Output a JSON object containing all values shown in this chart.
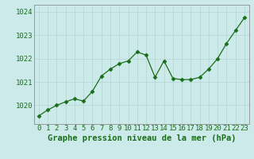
{
  "x": [
    0,
    1,
    2,
    3,
    4,
    5,
    6,
    7,
    8,
    9,
    10,
    11,
    12,
    13,
    14,
    15,
    16,
    17,
    18,
    19,
    20,
    21,
    22,
    23
  ],
  "y": [
    1019.55,
    1019.8,
    1020.0,
    1020.15,
    1020.28,
    1020.18,
    1020.6,
    1021.25,
    1021.55,
    1021.78,
    1021.9,
    1022.28,
    1022.15,
    1021.2,
    1021.9,
    1021.15,
    1021.1,
    1021.1,
    1021.2,
    1021.55,
    1022.0,
    1022.65,
    1023.2,
    1023.75
  ],
  "line_color": "#1a6e1a",
  "marker": "D",
  "marker_size": 2.5,
  "bg_color": "#cceaea",
  "grid_color": "#b8d8d8",
  "ylabel_ticks": [
    1020,
    1021,
    1022,
    1023,
    1024
  ],
  "xlabel_label": "Graphe pression niveau de la mer (hPa)",
  "ylim": [
    1019.2,
    1024.3
  ],
  "xlim": [
    -0.5,
    23.5
  ],
  "label_fontsize": 7.5,
  "tick_fontsize": 6.5
}
